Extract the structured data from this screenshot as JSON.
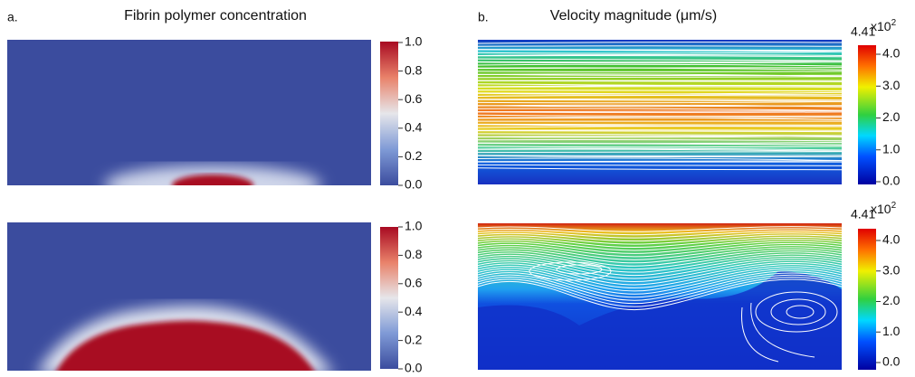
{
  "panel_a": {
    "label": "a.",
    "title": "Fibrin polymer concentration",
    "colorbars": [
      {
        "ticks": [
          "1.0",
          "0.8",
          "0.6",
          "0.4",
          "0.2",
          "0.0"
        ]
      },
      {
        "ticks": [
          "1.0",
          "0.8",
          "0.6",
          "0.4",
          "0.2",
          "0.0"
        ]
      }
    ]
  },
  "panel_b": {
    "label": "b.",
    "title": "Velocity magnitude (μm/s)",
    "colorbars": [
      {
        "max_label": "4.41",
        "multiplier": "x10",
        "exponent": "2",
        "ticks": [
          "4.0",
          "3.0",
          "2.0",
          "1.0",
          "0.0"
        ]
      },
      {
        "max_label": "4.41",
        "multiplier": "x10",
        "exponent": "2",
        "ticks": [
          "4.0",
          "3.0",
          "2.0",
          "1.0",
          "0.0"
        ]
      }
    ]
  }
}
